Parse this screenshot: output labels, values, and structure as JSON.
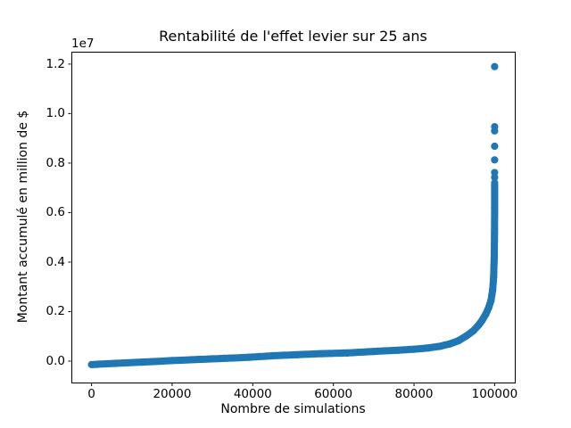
{
  "figure": {
    "background": "#ffffff",
    "frame_color": "#000000"
  },
  "chart_data": {
    "type": "scatter",
    "title": "Rentabilité de l'effet levier sur 25 ans",
    "xlabel": "Nombre de simulations",
    "ylabel": "Montant accumulé en million de $",
    "y_offset_label": "1e7",
    "y_units": "values expressed in multiples of 1e7",
    "grid": false,
    "legend": null,
    "marker_color": "#1f77b4",
    "marker_radius_px": 4.1,
    "xlim": [
      -5000,
      105000
    ],
    "ylim": [
      -0.0865,
      1.25
    ],
    "x_ticks": [
      {
        "v": 0,
        "label": "0"
      },
      {
        "v": 20000,
        "label": "20000"
      },
      {
        "v": 40000,
        "label": "40000"
      },
      {
        "v": 60000,
        "label": "60000"
      },
      {
        "v": 80000,
        "label": "80000"
      },
      {
        "v": 100000,
        "label": "100000"
      }
    ],
    "y_ticks": [
      {
        "v": 0.0,
        "label": "0.0"
      },
      {
        "v": 0.2,
        "label": "0.2"
      },
      {
        "v": 0.4,
        "label": "0.4"
      },
      {
        "v": 0.6,
        "label": "0.6"
      },
      {
        "v": 0.8,
        "label": "0.8"
      },
      {
        "v": 1.0,
        "label": "1.0"
      },
      {
        "v": 1.2,
        "label": "1.2"
      }
    ],
    "curve_anchors": [
      [
        0,
        -0.014
      ],
      [
        6000,
        -0.009
      ],
      [
        12500,
        -0.004
      ],
      [
        20000,
        0.002
      ],
      [
        27000,
        0.007
      ],
      [
        33000,
        0.011
      ],
      [
        39000,
        0.0155
      ],
      [
        45000,
        0.0215
      ],
      [
        51000,
        0.026
      ],
      [
        57000,
        0.03
      ],
      [
        63500,
        0.033
      ],
      [
        70000,
        0.039
      ],
      [
        76000,
        0.044
      ],
      [
        80000,
        0.048
      ],
      [
        83500,
        0.053
      ],
      [
        86500,
        0.06
      ],
      [
        89000,
        0.07
      ],
      [
        91000,
        0.082
      ],
      [
        93000,
        0.102
      ],
      [
        94700,
        0.122
      ],
      [
        96000,
        0.145
      ],
      [
        96900,
        0.165
      ],
      [
        97800,
        0.19
      ],
      [
        98500,
        0.215
      ],
      [
        99100,
        0.245
      ],
      [
        99500,
        0.285
      ],
      [
        99750,
        0.34
      ],
      [
        99900,
        0.42
      ],
      [
        99970,
        0.52
      ],
      [
        100000,
        0.62
      ],
      [
        100000,
        0.72
      ]
    ],
    "outlier_x": 100000,
    "outliers_y": [
      0.742,
      0.762,
      0.813,
      0.868,
      0.93,
      0.947,
      1.19
    ]
  }
}
